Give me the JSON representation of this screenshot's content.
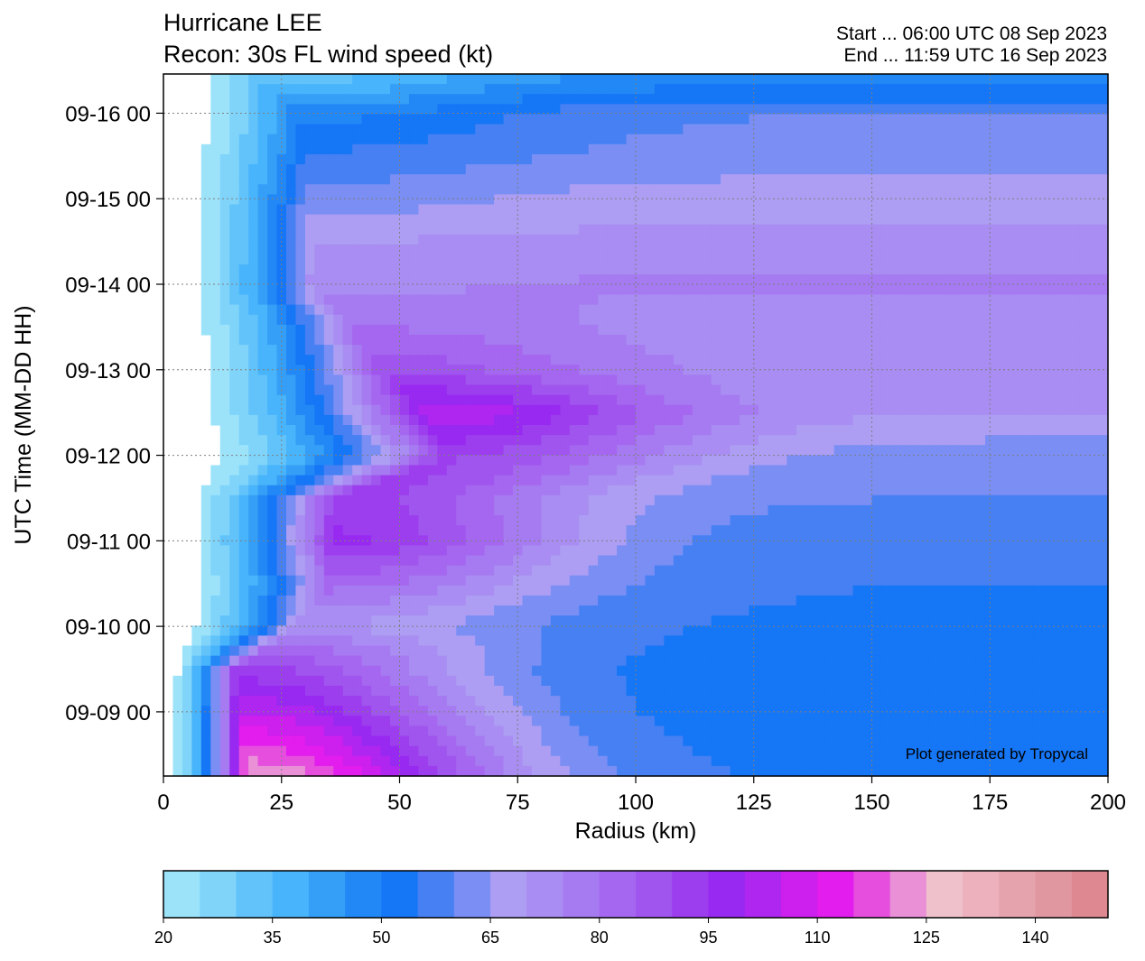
{
  "header": {
    "title_line1": "Hurricane LEE",
    "title_line2": "Recon: 30s FL wind speed (kt)",
    "start_text": "Start ... 06:00 UTC 08 Sep 2023",
    "end_text": "End ... 11:59 UTC 16 Sep 2023"
  },
  "credit": "Plot generated by Tropycal",
  "chart_data": {
    "type": "heatmap",
    "title": "Hurricane LEE",
    "subtitle": "Recon: 30s FL wind speed (kt)",
    "xlabel": "Radius (km)",
    "ylabel": "UTC Time (MM-DD HH)",
    "xlim": [
      0,
      200
    ],
    "ylim": [
      "09-08 06",
      "09-16 11"
    ],
    "x_ticks": [
      0,
      25,
      50,
      75,
      100,
      125,
      150,
      175,
      200
    ],
    "y_ticks": [
      "09-09 00",
      "09-10 00",
      "09-11 00",
      "09-12 00",
      "09-13 00",
      "09-14 00",
      "09-15 00",
      "09-16 00"
    ],
    "grid": true,
    "colorbar": {
      "label_ticks": [
        20,
        35,
        50,
        65,
        80,
        95,
        110,
        125,
        140
      ],
      "levels": [
        20,
        25,
        30,
        35,
        40,
        45,
        50,
        55,
        60,
        65,
        70,
        75,
        80,
        85,
        90,
        95,
        100,
        105,
        110,
        115,
        120,
        125,
        130,
        135,
        140,
        145
      ],
      "colors": [
        "#9ce3fa",
        "#80d4fa",
        "#62c3fa",
        "#48b4fb",
        "#359ff7",
        "#2288f6",
        "#1576f6",
        "#4680f3",
        "#7a8ef4",
        "#ad9ef3",
        "#a98df2",
        "#a67af1",
        "#a567ef",
        "#a055ee",
        "#9c3eee",
        "#9829f0",
        "#ae26f0",
        "#cd1fee",
        "#e21dee",
        "#e64ede",
        "#e990d7",
        "#efc2cb",
        "#ecb1bd",
        "#e5a3ad",
        "#e1979f",
        "#de8892"
      ]
    },
    "rows": [
      {
        "time": "09-16 09",
        "rmw": 20,
        "peak": 33,
        "far": 48
      },
      {
        "time": "09-16 00",
        "rmw": 28,
        "peak": 48,
        "far": 60
      },
      {
        "time": "09-15 12",
        "rmw": 30,
        "peak": 56,
        "far": 62
      },
      {
        "time": "09-15 00",
        "rmw": 30,
        "peak": 62,
        "far": 68
      },
      {
        "time": "09-14 12",
        "rmw": 32,
        "peak": 70,
        "far": 72
      },
      {
        "time": "09-14 00",
        "rmw": 32,
        "peak": 74,
        "far": 76
      },
      {
        "time": "09-13 12",
        "rmw": 40,
        "peak": 80,
        "far": 72
      },
      {
        "time": "09-13 00",
        "rmw": 46,
        "peak": 88,
        "far": 72
      },
      {
        "time": "09-12 12",
        "rmw": 56,
        "peak": 105,
        "far": 70
      },
      {
        "time": "09-12 00",
        "rmw": 60,
        "peak": 90,
        "far": 62
      },
      {
        "time": "09-11 12",
        "rmw": 36,
        "peak": 92,
        "far": 60
      },
      {
        "time": "09-11 00",
        "rmw": 36,
        "peak": 96,
        "far": 56
      },
      {
        "time": "09-10 12",
        "rmw": 35,
        "peak": 82,
        "far": 55
      },
      {
        "time": "09-10 00",
        "rmw": 28,
        "peak": 70,
        "far": 54
      },
      {
        "time": "09-09 12",
        "rmw": 15,
        "peak": 92,
        "far": 52
      },
      {
        "time": "09-09 00",
        "rmw": 16,
        "peak": 105,
        "far": 52
      },
      {
        "time": "09-08 06",
        "rmw": 18,
        "peak": 125,
        "far": 54
      }
    ]
  }
}
